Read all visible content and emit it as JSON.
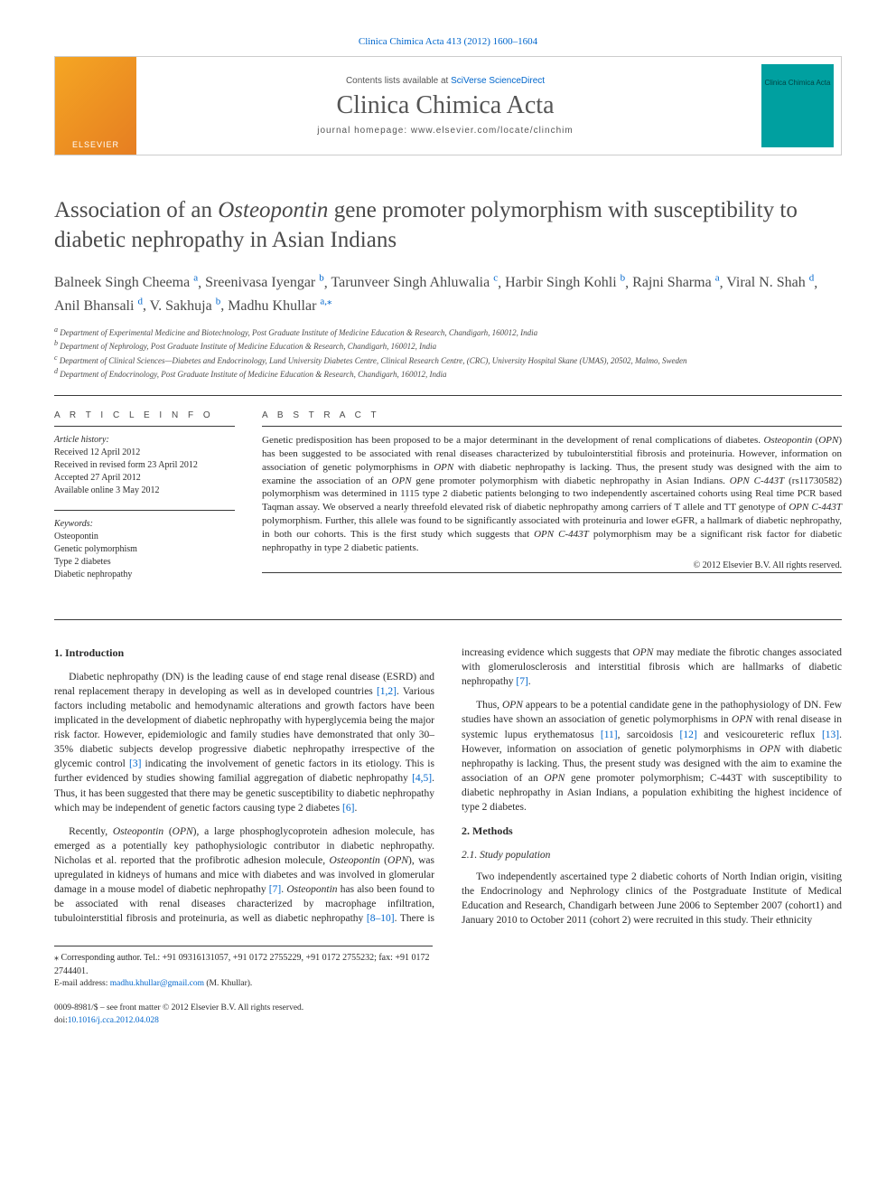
{
  "top_citation": "Clinica Chimica Acta 413 (2012) 1600–1604",
  "masthead": {
    "publisher": "ELSEVIER",
    "contents_prefix": "Contents lists available at ",
    "contents_link": "SciVerse ScienceDirect",
    "journal": "Clinica Chimica Acta",
    "homepage": "journal homepage: www.elsevier.com/locate/clinchim",
    "cover_text": "Clinica\nChimica\nActa"
  },
  "title_pre": "Association of an ",
  "title_italic": "Osteopontin",
  "title_post": " gene promoter polymorphism with susceptibility to diabetic nephropathy in Asian Indians",
  "authors": [
    {
      "name": "Balneek Singh Cheema",
      "aff": "a"
    },
    {
      "name": "Sreenivasa Iyengar",
      "aff": "b"
    },
    {
      "name": "Tarunveer Singh Ahluwalia",
      "aff": "c"
    },
    {
      "name": "Harbir Singh Kohli",
      "aff": "b"
    },
    {
      "name": "Rajni Sharma",
      "aff": "a"
    },
    {
      "name": "Viral N. Shah",
      "aff": "d"
    },
    {
      "name": "Anil Bhansali",
      "aff": "d"
    },
    {
      "name": "V. Sakhuja",
      "aff": "b"
    },
    {
      "name": "Madhu Khullar",
      "aff": "a",
      "star": true
    }
  ],
  "affiliations": {
    "a": "Department of Experimental Medicine and Biotechnology, Post Graduate Institute of Medicine Education & Research, Chandigarh, 160012, India",
    "b": "Department of Nephrology, Post Graduate Institute of Medicine Education & Research, Chandigarh, 160012, India",
    "c": "Department of Clinical Sciences—Diabetes and Endocrinology, Lund University Diabetes Centre, Clinical Research Centre, (CRC), University Hospital Skane (UMAS), 20502, Malmo, Sweden",
    "d": "Department of Endocrinology, Post Graduate Institute of Medicine Education & Research, Chandigarh, 160012, India"
  },
  "article_info": {
    "label": "A R T I C L E   I N F O",
    "history_label": "Article history:",
    "received": "Received 12 April 2012",
    "revised": "Received in revised form 23 April 2012",
    "accepted": "Accepted 27 April 2012",
    "online": "Available online 3 May 2012",
    "keywords_label": "Keywords:",
    "keywords": [
      "Osteopontin",
      "Genetic polymorphism",
      "Type 2 diabetes",
      "Diabetic nephropathy"
    ]
  },
  "abstract": {
    "label": "A B S T R A C T",
    "text_parts": [
      {
        "t": "Genetic predisposition has been proposed to be a major determinant in the development of renal complications of diabetes. "
      },
      {
        "t": "Osteopontin",
        "i": true
      },
      {
        "t": " ("
      },
      {
        "t": "OPN",
        "i": true
      },
      {
        "t": ") has been suggested to be associated with renal diseases characterized by tubulointerstitial fibrosis and proteinuria. However, information on association of genetic polymorphisms in "
      },
      {
        "t": "OPN",
        "i": true
      },
      {
        "t": " with diabetic nephropathy is lacking. Thus, the present study was designed with the aim to examine the association of an "
      },
      {
        "t": "OPN",
        "i": true
      },
      {
        "t": " gene promoter polymorphism with diabetic nephropathy in Asian Indians. "
      },
      {
        "t": "OPN C-443T",
        "i": true
      },
      {
        "t": " (rs11730582) polymorphism was determined in 1115 type 2 diabetic patients belonging to two independently ascertained cohorts using Real time PCR based Taqman assay. We observed a nearly threefold elevated risk of diabetic nephropathy among carriers of T allele and TT genotype of "
      },
      {
        "t": "OPN C-443T",
        "i": true
      },
      {
        "t": " polymorphism. Further, this allele was found to be significantly associated with proteinuria and lower eGFR, a hallmark of diabetic nephropathy, in both our cohorts. This is the first study which suggests that "
      },
      {
        "t": "OPN C-443T",
        "i": true
      },
      {
        "t": " polymorphism may be a significant risk factor for diabetic nephropathy in type 2 diabetic patients."
      }
    ],
    "copyright": "© 2012 Elsevier B.V. All rights reserved."
  },
  "sections": {
    "intro_heading": "1. Introduction",
    "methods_heading": "2. Methods",
    "study_pop_heading": "2.1. Study population"
  },
  "intro_p1_parts": [
    {
      "t": "Diabetic nephropathy (DN) is the leading cause of end stage renal disease (ESRD) and renal replacement therapy in developing as well as in developed countries "
    },
    {
      "t": "[1,2]",
      "c": true
    },
    {
      "t": ". Various factors including metabolic and hemodynamic alterations and growth factors have been implicated in the development of diabetic nephropathy with hyperglycemia being the major risk factor. However, epidemiologic and family studies have demonstrated that only 30–35% diabetic subjects develop progressive diabetic nephropathy irrespective of the glycemic control "
    },
    {
      "t": "[3]",
      "c": true
    },
    {
      "t": " indicating the involvement of genetic factors in its etiology. This is further evidenced by studies showing familial aggregation of diabetic nephropathy "
    },
    {
      "t": "[4,5]",
      "c": true
    },
    {
      "t": ". Thus, it has been suggested that there may be genetic susceptibility to diabetic nephropathy which may be independent of genetic factors causing type 2 diabetes "
    },
    {
      "t": "[6]",
      "c": true
    },
    {
      "t": "."
    }
  ],
  "intro_p2_parts": [
    {
      "t": "Recently, "
    },
    {
      "t": "Osteopontin",
      "i": true
    },
    {
      "t": " ("
    },
    {
      "t": "OPN",
      "i": true
    },
    {
      "t": "), a large phosphoglycoprotein adhesion molecule, has emerged as a potentially key pathophysiologic contributor in diabetic nephropathy. Nicholas et al. reported that the profibrotic adhesion molecule, "
    },
    {
      "t": "Osteopontin",
      "i": true
    },
    {
      "t": " ("
    },
    {
      "t": "OPN",
      "i": true
    },
    {
      "t": "), was upregulated in kidneys of humans and mice with diabetes and was involved in glomerular damage in a mouse model of diabetic nephropathy "
    },
    {
      "t": "[7]",
      "c": true
    },
    {
      "t": ". "
    },
    {
      "t": "Osteopontin",
      "i": true
    },
    {
      "t": " has also been found to be associated with renal diseases characterized by macrophage infiltration, tubulointerstitial fibrosis and proteinuria, as well as diabetic nephropathy "
    },
    {
      "t": "[8–10]",
      "c": true
    },
    {
      "t": ". There is increasing evidence which suggests that "
    },
    {
      "t": "OPN",
      "i": true
    },
    {
      "t": " may mediate the fibrotic changes associated with glomerulosclerosis and interstitial fibrosis which are hallmarks of diabetic nephropathy "
    },
    {
      "t": "[7]",
      "c": true
    },
    {
      "t": "."
    }
  ],
  "intro_p3_parts": [
    {
      "t": "Thus, "
    },
    {
      "t": "OPN",
      "i": true
    },
    {
      "t": " appears to be a potential candidate gene in the pathophysiology of DN. Few studies have shown an association of genetic polymorphisms in "
    },
    {
      "t": "OPN",
      "i": true
    },
    {
      "t": " with renal disease in systemic lupus erythematosus "
    },
    {
      "t": "[11]",
      "c": true
    },
    {
      "t": ", sarcoidosis "
    },
    {
      "t": "[12]",
      "c": true
    },
    {
      "t": " and vesicoureteric reflux "
    },
    {
      "t": "[13]",
      "c": true
    },
    {
      "t": ". However, information on association of genetic polymorphisms in "
    },
    {
      "t": "OPN",
      "i": true
    },
    {
      "t": " with diabetic nephropathy is lacking. Thus, the present study was designed with the aim to examine the association of an "
    },
    {
      "t": "OPN",
      "i": true
    },
    {
      "t": " gene promoter polymorphism; C-443T with susceptibility to diabetic nephropathy in Asian Indians, a population exhibiting the highest incidence of type 2 diabetes."
    }
  ],
  "methods_p1": "Two independently ascertained type 2 diabetic cohorts of North Indian origin, visiting the Endocrinology and Nephrology clinics of the Postgraduate Institute of Medical Education and Research, Chandigarh between June 2006 to September 2007 (cohort1) and January 2010 to October 2011 (cohort 2) were recruited in this study. Their ethnicity",
  "footnote": {
    "corr_label": "⁎ Corresponding author. Tel.: +91 09316131057, +91 0172 2755229, +91 0172 2755232; fax: +91 0172 2744401.",
    "email_label": "E-mail address: ",
    "email": "madhu.khullar@gmail.com",
    "email_suffix": " (M. Khullar)."
  },
  "bottom": {
    "line1": "0009-8981/$ – see front matter © 2012 Elsevier B.V. All rights reserved.",
    "doi_prefix": "doi:",
    "doi": "10.1016/j.cca.2012.04.028"
  },
  "colors": {
    "link": "#0066cc",
    "text": "#2a2a2a",
    "heading_gray": "#4a4a4a",
    "elsevier_orange": "#e67e22",
    "cover_teal": "#00a0a0"
  }
}
